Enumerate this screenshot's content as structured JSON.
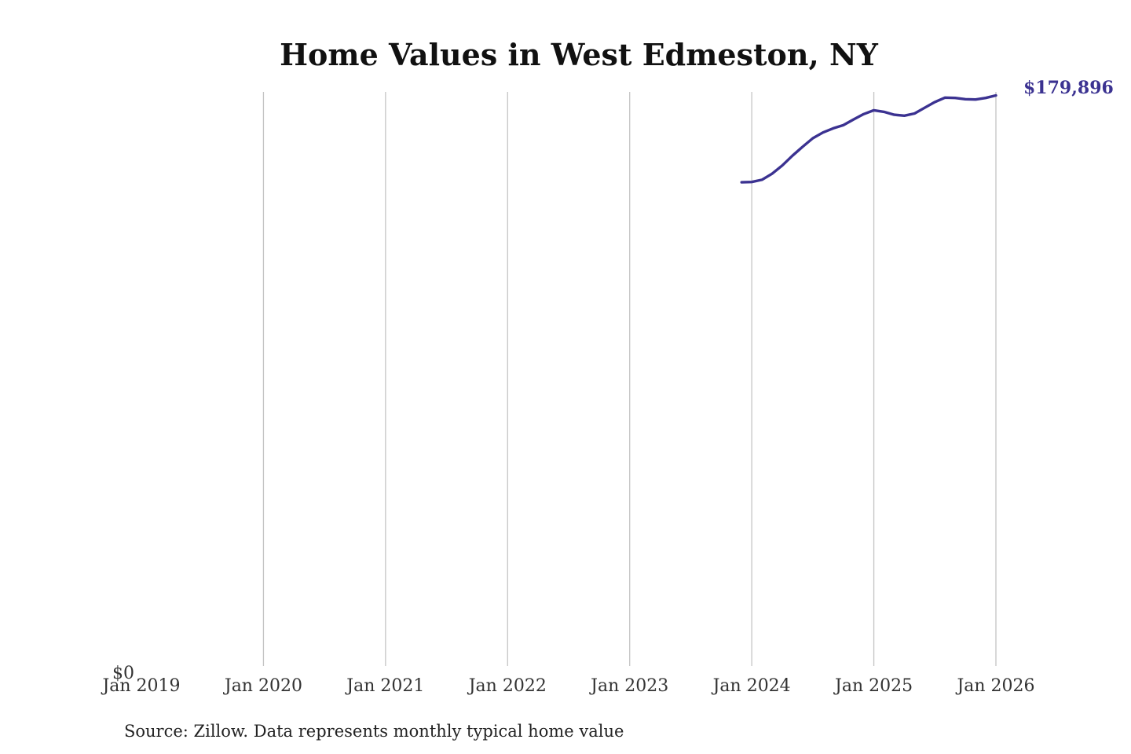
{
  "chart_data": {
    "type": "line",
    "title": "Home Values in West Edmeston, NY",
    "xlabel": "",
    "ylabel": "",
    "x_ticks": [
      "Jan 2019",
      "Jan 2020",
      "Jan 2021",
      "Jan 2022",
      "Jan 2023",
      "Jan 2024",
      "Jan 2025",
      "Jan 2026"
    ],
    "y_ticks": [
      "$0"
    ],
    "xlim": [
      "2019-01",
      "2026-01"
    ],
    "ylim": [
      0,
      181000
    ],
    "grid": "vertical",
    "line_color": "#3b3291",
    "series": [
      {
        "points": [
          {
            "x": "2023-12",
            "y": 152500
          },
          {
            "x": "2024-01",
            "y": 152600
          },
          {
            "x": "2024-02",
            "y": 153300
          },
          {
            "x": "2024-03",
            "y": 155200
          },
          {
            "x": "2024-04",
            "y": 157800
          },
          {
            "x": "2024-05",
            "y": 160900
          },
          {
            "x": "2024-06",
            "y": 163700
          },
          {
            "x": "2024-07",
            "y": 166400
          },
          {
            "x": "2024-08",
            "y": 168200
          },
          {
            "x": "2024-09",
            "y": 169500
          },
          {
            "x": "2024-10",
            "y": 170500
          },
          {
            "x": "2024-11",
            "y": 172300
          },
          {
            "x": "2024-12",
            "y": 174000
          },
          {
            "x": "2025-01",
            "y": 175200
          },
          {
            "x": "2025-02",
            "y": 174700
          },
          {
            "x": "2025-03",
            "y": 173800
          },
          {
            "x": "2025-04",
            "y": 173500
          },
          {
            "x": "2025-05",
            "y": 174200
          },
          {
            "x": "2025-06",
            "y": 176000
          },
          {
            "x": "2025-07",
            "y": 177800
          },
          {
            "x": "2025-08",
            "y": 179200
          },
          {
            "x": "2025-09",
            "y": 179100
          },
          {
            "x": "2025-10",
            "y": 178700
          },
          {
            "x": "2025-11",
            "y": 178600
          },
          {
            "x": "2025-12",
            "y": 179100
          },
          {
            "x": "2026-01",
            "y": 179896
          }
        ]
      }
    ],
    "end_label": "$179,896"
  },
  "source_note": "Source: Zillow. Data represents monthly typical home value"
}
